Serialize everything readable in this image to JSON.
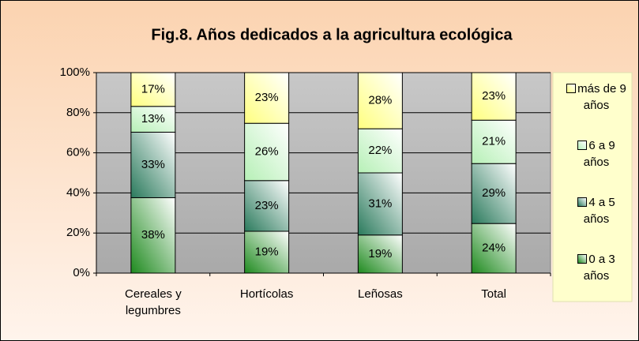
{
  "chart_data": {
    "type": "bar",
    "stacking": "percent",
    "title": "Fig.8. Años dedicados a la agricultura ecológica",
    "categories": [
      "Cereales y legumbres",
      "Hortícolas",
      "Leñosas",
      "Total"
    ],
    "series": [
      {
        "name": "0 a 3 años",
        "color": "#1e8a1e",
        "values": [
          38,
          19,
          19,
          24
        ],
        "value_labels": [
          "38%",
          "19%",
          "19%",
          "24%"
        ]
      },
      {
        "name": "4 a 5 años",
        "color": "#2a7a5c",
        "values": [
          33,
          23,
          31,
          29
        ],
        "value_labels": [
          "33%",
          "23%",
          "31%",
          "29%"
        ]
      },
      {
        "name": "6 a 9 años",
        "color": "#b6f0b6",
        "values": [
          13,
          26,
          22,
          21
        ],
        "value_labels": [
          "13%",
          "26%",
          "22%",
          "21%"
        ]
      },
      {
        "name": "más de 9 años",
        "color": "#ffff80",
        "values": [
          17,
          23,
          28,
          23
        ],
        "value_labels": [
          "17%",
          "23%",
          "28%",
          "23%"
        ]
      }
    ],
    "ylim": [
      0,
      100
    ],
    "yticks": [
      {
        "value": 0,
        "label": "0%"
      },
      {
        "value": 20,
        "label": "20%"
      },
      {
        "value": 40,
        "label": "40%"
      },
      {
        "value": 60,
        "label": "60%"
      },
      {
        "value": 80,
        "label": "80%"
      },
      {
        "value": 100,
        "label": "100%"
      }
    ],
    "grid": true,
    "legend": "right"
  }
}
